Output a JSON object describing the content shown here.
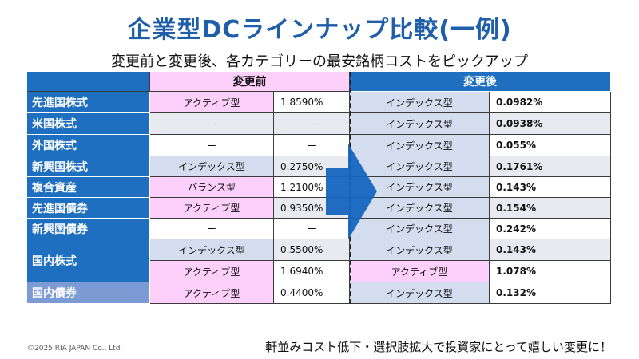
{
  "title": "企業型DCラインナップ比較(一例)",
  "subtitle": "変更前と変更後、各カテゴリーの最安銘柄コストをピックアップ",
  "table": {
    "header_before": "変更前",
    "header_after": "変更後",
    "rows": [
      {
        "category": "先進国株式",
        "before_type": "アクティブ型",
        "before_cost": "1.8590%",
        "after_type": "インデックス型",
        "after_cost": "0.0982%"
      },
      {
        "category": "米国株式",
        "before_type": "ー",
        "before_cost": "ー",
        "after_type": "インデックス型",
        "after_cost": "0.0938%"
      },
      {
        "category": "外国株式",
        "before_type": "ー",
        "before_cost": "ー",
        "after_type": "インデックス型",
        "after_cost": "0.055%"
      },
      {
        "category": "新興国株式",
        "before_type": "インデックス型",
        "before_cost": "0.2750%",
        "after_type": "インデックス型",
        "after_cost": "0.1761%"
      },
      {
        "category": "複合資産",
        "before_type": "バランス型",
        "before_cost": "1.2100%",
        "after_type": "インデックス型",
        "after_cost": "0.143%"
      },
      {
        "category": "先進国債券",
        "before_type": "アクティブ型",
        "before_cost": "0.9350%",
        "after_type": "インデックス型",
        "after_cost": "0.154%"
      },
      {
        "category": "新興国債券",
        "before_type": "ー",
        "before_cost": "ー",
        "after_type": "インデックス型",
        "after_cost": "0.242%"
      },
      {
        "category": "国内株式",
        "before_type": "インデックス型",
        "before_cost": "0.5500%",
        "after_type": "インデックス型",
        "after_cost": "0.143%"
      },
      {
        "category": "",
        "before_type": "アクティブ型",
        "before_cost": "1.6940%",
        "after_type": "アクティブ型",
        "after_cost": "1.078%"
      },
      {
        "category": "国内債券",
        "before_type": "アクティブ型",
        "before_cost": "0.4400%",
        "after_type": "インデックス型",
        "after_cost": "0.132%"
      }
    ]
  },
  "footer": "軒並みコスト低下・選択肢拡大で投資家にとって嬉しい変更に！",
  "copyright": "©2025 RIA JAPAN Co., Ltd.",
  "colors": {
    "header_blue": "#1e6fbf",
    "pink": "#fdd0fb",
    "title_blue": "#1f5ea8",
    "arrow_blue": "#1565c0"
  }
}
